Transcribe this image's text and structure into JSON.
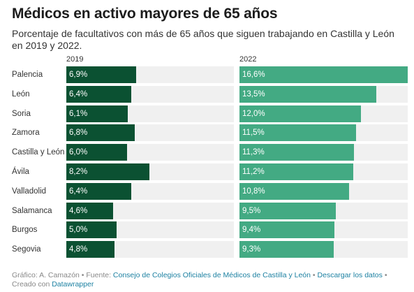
{
  "header": {
    "title": "Médicos en activo mayores de 65 años",
    "subtitle": "Porcentaje de facultativos con más de 65 años que siguen trabajando en Castilla y León en 2019 y 2022."
  },
  "chart_data": {
    "type": "bar",
    "orientation": "horizontal",
    "categories": [
      "Palencia",
      "León",
      "Soria",
      "Zamora",
      "Castilla y León",
      "Ávila",
      "Valladolid",
      "Salamanca",
      "Burgos",
      "Segovia"
    ],
    "series": [
      {
        "name": "2019",
        "values": [
          6.9,
          6.4,
          6.1,
          6.8,
          6.0,
          8.2,
          6.4,
          4.6,
          5.0,
          4.8
        ],
        "labels": [
          "6,9%",
          "6,4%",
          "6,1%",
          "6,8%",
          "6,0%",
          "8,2%",
          "6,4%",
          "4,6%",
          "5,0%",
          "4,8%"
        ],
        "color": "#0b5132"
      },
      {
        "name": "2022",
        "values": [
          16.6,
          13.5,
          12.0,
          11.5,
          11.3,
          11.2,
          10.8,
          9.5,
          9.4,
          9.3
        ],
        "labels": [
          "16,6%",
          "13,5%",
          "12,0%",
          "11,5%",
          "11,3%",
          "11,2%",
          "10,8%",
          "9,5%",
          "9,4%",
          "9,3%"
        ],
        "color": "#43aa83"
      }
    ],
    "xlim": [
      0,
      16.6
    ],
    "background_color": "#f0f0f0"
  },
  "footer": {
    "graphic_prefix": "Gráfico: A. Camazón",
    "source_prefix": " • Fuente: ",
    "source_link": "Consejo de Colegios Oficiales de Médicos de Castilla y León",
    "sep1": " • ",
    "download_link": "Descargar los datos",
    "created_prefix": " • Creado con ",
    "datawrapper_link": "Datawrapper"
  }
}
